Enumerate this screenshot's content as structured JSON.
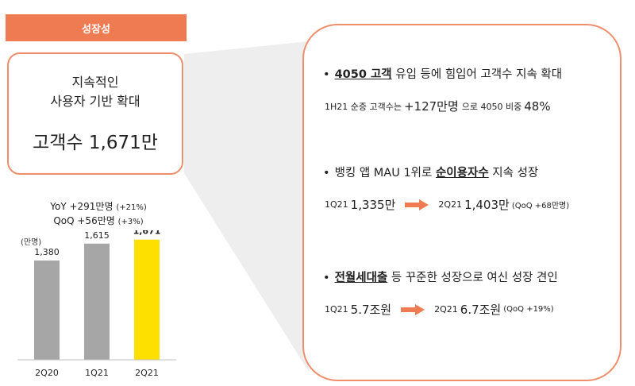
{
  "header": {
    "title": "성장성"
  },
  "kpi": {
    "line1": "지속적인",
    "line2": "사용자 기반 확대",
    "label": "고객수",
    "value": "1,671만"
  },
  "growth": {
    "yoy_main": "YoY +291만명",
    "yoy_pct": "(+21%)",
    "qoq_main": "QoQ +56만명",
    "qoq_pct": "(+3%)"
  },
  "chart_data": {
    "type": "bar",
    "categories": [
      "2Q20",
      "1Q21",
      "2Q21"
    ],
    "values": [
      1380,
      1615,
      1671
    ],
    "value_labels": [
      "1,380",
      "1,615",
      "1,671"
    ],
    "unit": "(만명)",
    "ylim": [
      0,
      1800
    ],
    "colors": [
      "#a6a6a6",
      "#a6a6a6",
      "#fde000"
    ],
    "highlight_index": 2
  },
  "details": [
    {
      "bullet": "•",
      "emph": "4050 고객",
      "rest": " 유입 등에 힘입어 고객수 지속 확대",
      "sub": {
        "prefix": "1H21 순증 고객수는",
        "value": "+127만명",
        "mid": "으로 4050 비중",
        "pct": "48%"
      }
    },
    {
      "bullet": "•",
      "pre": "뱅킹 앱 MAU 1위로 ",
      "emph": "순이용자수",
      "rest": " 지속 성장",
      "sub": {
        "from_period": "1Q21",
        "from_value": "1,335만",
        "to_period": "2Q21",
        "to_value": "1,403만",
        "note": "(QoQ +68만명)"
      }
    },
    {
      "bullet": "•",
      "emph": "전월세대출",
      "rest": " 등 꾸준한 성장으로 여신 성장 견인",
      "sub": {
        "from_period": "1Q21",
        "from_value": "5.7조원",
        "to_period": "2Q21",
        "to_value": "6.7조원",
        "note": "(QoQ +19%)"
      }
    }
  ],
  "colors": {
    "accent": "#ef7b52",
    "border": "#ef8e6c",
    "bar_gray": "#a6a6a6",
    "bar_highlight": "#fde000"
  }
}
